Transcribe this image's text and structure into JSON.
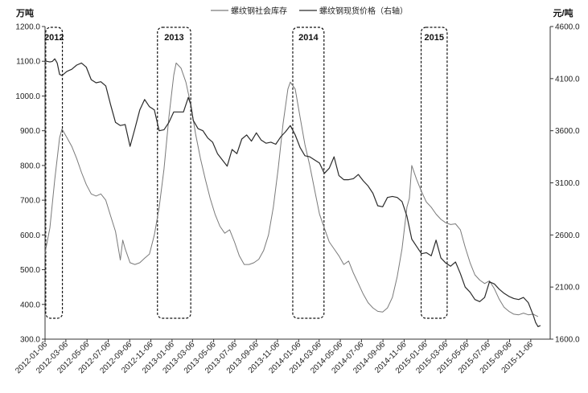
{
  "chart_data": {
    "type": "line",
    "legend_position": "top-center",
    "grid": false,
    "left_axis": {
      "unit": "万吨",
      "ylim": [
        300,
        1200
      ],
      "ticks": [
        "300.0",
        "400.0",
        "500.0",
        "600.0",
        "700.0",
        "800.0",
        "900.0",
        "1000.0",
        "1100.0",
        "1200.0"
      ]
    },
    "right_axis": {
      "unit": "元/吨",
      "ylim": [
        1600,
        4600
      ],
      "ticks": [
        "1600.0",
        "2100.0",
        "2600.0",
        "3100.0",
        "3600.0",
        "4100.0",
        "4600.0"
      ]
    },
    "x_range": [
      "2012-01-06",
      "2016-01-01"
    ],
    "x_ticks": [
      "2012-01-06",
      "2012-03-06",
      "2012-05-06",
      "2012-07-06",
      "2012-09-06",
      "2012-11-06",
      "2013-01-06",
      "2013-03-06",
      "2013-05-06",
      "2013-07-06",
      "2013-09-06",
      "2013-11-06",
      "2014-01-06",
      "2014-03-06",
      "2014-05-06",
      "2014-07-06",
      "2014-09-06",
      "2014-11-06",
      "2015-01-06",
      "2015-03-06",
      "2015-05-06",
      "2015-07-06",
      "2015-09-06",
      "2015-11-06"
    ],
    "highlight_periods": [
      {
        "label": "2012",
        "start": "2012-01-08",
        "end": "2012-02-25"
      },
      {
        "label": "2013",
        "start": "2012-11-25",
        "end": "2013-03-01"
      },
      {
        "label": "2014",
        "start": "2013-12-20",
        "end": "2014-03-20"
      },
      {
        "label": "2015",
        "start": "2014-12-25",
        "end": "2015-03-10"
      }
    ],
    "series": [
      {
        "name": "螺纹钢社会库存",
        "axis": "left",
        "color": "#7a7a7a",
        "points": [
          [
            "2012-01-06",
            548
          ],
          [
            "2012-01-20",
            620
          ],
          [
            "2012-02-03",
            760
          ],
          [
            "2012-02-17",
            880
          ],
          [
            "2012-02-24",
            905
          ],
          [
            "2012-03-09",
            880
          ],
          [
            "2012-03-23",
            855
          ],
          [
            "2012-04-06",
            820
          ],
          [
            "2012-04-20",
            780
          ],
          [
            "2012-05-04",
            745
          ],
          [
            "2012-05-18",
            718
          ],
          [
            "2012-06-01",
            712
          ],
          [
            "2012-06-15",
            718
          ],
          [
            "2012-06-29",
            700
          ],
          [
            "2012-07-13",
            655
          ],
          [
            "2012-07-27",
            610
          ],
          [
            "2012-08-10",
            528
          ],
          [
            "2012-08-17",
            585
          ],
          [
            "2012-08-24",
            560
          ],
          [
            "2012-09-07",
            520
          ],
          [
            "2012-09-21",
            515
          ],
          [
            "2012-10-05",
            520
          ],
          [
            "2012-10-19",
            533
          ],
          [
            "2012-11-02",
            545
          ],
          [
            "2012-11-16",
            600
          ],
          [
            "2012-11-30",
            680
          ],
          [
            "2012-12-14",
            790
          ],
          [
            "2012-12-28",
            940
          ],
          [
            "2013-01-11",
            1060
          ],
          [
            "2013-01-18",
            1095
          ],
          [
            "2013-02-01",
            1080
          ],
          [
            "2013-02-15",
            1040
          ],
          [
            "2013-03-01",
            975
          ],
          [
            "2013-03-15",
            890
          ],
          [
            "2013-03-29",
            820
          ],
          [
            "2013-04-12",
            760
          ],
          [
            "2013-04-26",
            705
          ],
          [
            "2013-05-10",
            660
          ],
          [
            "2013-05-24",
            625
          ],
          [
            "2013-06-07",
            605
          ],
          [
            "2013-06-21",
            615
          ],
          [
            "2013-07-05",
            580
          ],
          [
            "2013-07-19",
            540
          ],
          [
            "2013-08-02",
            515
          ],
          [
            "2013-08-16",
            515
          ],
          [
            "2013-08-30",
            520
          ],
          [
            "2013-09-13",
            530
          ],
          [
            "2013-09-27",
            555
          ],
          [
            "2013-10-11",
            600
          ],
          [
            "2013-10-25",
            680
          ],
          [
            "2013-11-08",
            790
          ],
          [
            "2013-11-22",
            920
          ],
          [
            "2013-12-06",
            1020
          ],
          [
            "2013-12-13",
            1040
          ],
          [
            "2013-12-27",
            1020
          ],
          [
            "2014-01-10",
            940
          ],
          [
            "2014-01-24",
            860
          ],
          [
            "2014-02-07",
            800
          ],
          [
            "2014-02-21",
            730
          ],
          [
            "2014-03-07",
            660
          ],
          [
            "2014-03-21",
            620
          ],
          [
            "2014-04-04",
            580
          ],
          [
            "2014-04-18",
            560
          ],
          [
            "2014-05-02",
            540
          ],
          [
            "2014-05-16",
            515
          ],
          [
            "2014-05-30",
            525
          ],
          [
            "2014-06-13",
            490
          ],
          [
            "2014-06-27",
            460
          ],
          [
            "2014-07-11",
            430
          ],
          [
            "2014-07-25",
            405
          ],
          [
            "2014-08-08",
            390
          ],
          [
            "2014-08-22",
            380
          ],
          [
            "2014-09-05",
            378
          ],
          [
            "2014-09-19",
            390
          ],
          [
            "2014-10-03",
            420
          ],
          [
            "2014-10-17",
            480
          ],
          [
            "2014-10-31",
            560
          ],
          [
            "2014-11-14",
            680
          ],
          [
            "2014-11-21",
            705
          ],
          [
            "2014-11-28",
            800
          ],
          [
            "2014-12-12",
            760
          ],
          [
            "2014-12-26",
            725
          ],
          [
            "2015-01-09",
            695
          ],
          [
            "2015-01-23",
            680
          ],
          [
            "2015-02-06",
            660
          ],
          [
            "2015-02-20",
            645
          ],
          [
            "2015-03-06",
            635
          ],
          [
            "2015-03-20",
            630
          ],
          [
            "2015-04-03",
            632
          ],
          [
            "2015-04-17",
            615
          ],
          [
            "2015-05-01",
            565
          ],
          [
            "2015-05-15",
            520
          ],
          [
            "2015-05-29",
            485
          ],
          [
            "2015-06-12",
            470
          ],
          [
            "2015-06-26",
            460
          ],
          [
            "2015-07-10",
            468
          ],
          [
            "2015-07-24",
            445
          ],
          [
            "2015-08-07",
            415
          ],
          [
            "2015-08-21",
            392
          ],
          [
            "2015-09-04",
            380
          ],
          [
            "2015-09-18",
            372
          ],
          [
            "2015-10-02",
            370
          ],
          [
            "2015-10-16",
            375
          ],
          [
            "2015-10-30",
            370
          ],
          [
            "2015-11-13",
            372
          ],
          [
            "2015-11-27",
            365
          ]
        ]
      },
      {
        "name": "螺纹钢现货价格（右轴）",
        "axis": "right",
        "color": "#2b2b2b",
        "points": [
          [
            "2012-01-06",
            4270
          ],
          [
            "2012-01-20",
            4260
          ],
          [
            "2012-01-27",
            4265
          ],
          [
            "2012-02-03",
            4290
          ],
          [
            "2012-02-10",
            4250
          ],
          [
            "2012-02-17",
            4140
          ],
          [
            "2012-02-24",
            4130
          ],
          [
            "2012-03-09",
            4170
          ],
          [
            "2012-03-23",
            4190
          ],
          [
            "2012-04-06",
            4230
          ],
          [
            "2012-04-20",
            4250
          ],
          [
            "2012-05-04",
            4210
          ],
          [
            "2012-05-18",
            4090
          ],
          [
            "2012-06-01",
            4060
          ],
          [
            "2012-06-15",
            4070
          ],
          [
            "2012-06-29",
            4030
          ],
          [
            "2012-07-13",
            3850
          ],
          [
            "2012-07-27",
            3680
          ],
          [
            "2012-08-10",
            3650
          ],
          [
            "2012-08-24",
            3660
          ],
          [
            "2012-09-07",
            3450
          ],
          [
            "2012-09-21",
            3620
          ],
          [
            "2012-10-05",
            3800
          ],
          [
            "2012-10-19",
            3900
          ],
          [
            "2012-11-02",
            3830
          ],
          [
            "2012-11-16",
            3800
          ],
          [
            "2012-11-30",
            3600
          ],
          [
            "2012-12-14",
            3610
          ],
          [
            "2012-12-28",
            3680
          ],
          [
            "2013-01-11",
            3780
          ],
          [
            "2013-01-25",
            3780
          ],
          [
            "2013-02-08",
            3780
          ],
          [
            "2013-02-22",
            3920
          ],
          [
            "2013-03-01",
            3850
          ],
          [
            "2013-03-08",
            3700
          ],
          [
            "2013-03-22",
            3620
          ],
          [
            "2013-04-05",
            3600
          ],
          [
            "2013-04-19",
            3530
          ],
          [
            "2013-05-03",
            3490
          ],
          [
            "2013-05-17",
            3380
          ],
          [
            "2013-05-31",
            3320
          ],
          [
            "2013-06-14",
            3260
          ],
          [
            "2013-06-28",
            3420
          ],
          [
            "2013-07-12",
            3380
          ],
          [
            "2013-07-26",
            3520
          ],
          [
            "2013-08-09",
            3560
          ],
          [
            "2013-08-23",
            3500
          ],
          [
            "2013-09-06",
            3580
          ],
          [
            "2013-09-20",
            3510
          ],
          [
            "2013-10-04",
            3480
          ],
          [
            "2013-10-18",
            3490
          ],
          [
            "2013-11-01",
            3470
          ],
          [
            "2013-11-15",
            3540
          ],
          [
            "2013-11-29",
            3590
          ],
          [
            "2013-12-13",
            3650
          ],
          [
            "2013-12-27",
            3560
          ],
          [
            "2014-01-10",
            3440
          ],
          [
            "2014-01-24",
            3360
          ],
          [
            "2014-02-07",
            3350
          ],
          [
            "2014-02-21",
            3320
          ],
          [
            "2014-03-07",
            3290
          ],
          [
            "2014-03-21",
            3190
          ],
          [
            "2014-04-04",
            3240
          ],
          [
            "2014-04-18",
            3350
          ],
          [
            "2014-05-02",
            3170
          ],
          [
            "2014-05-16",
            3130
          ],
          [
            "2014-05-30",
            3130
          ],
          [
            "2014-06-13",
            3140
          ],
          [
            "2014-06-27",
            3180
          ],
          [
            "2014-07-11",
            3120
          ],
          [
            "2014-07-25",
            3070
          ],
          [
            "2014-08-08",
            3000
          ],
          [
            "2014-08-22",
            2880
          ],
          [
            "2014-09-05",
            2870
          ],
          [
            "2014-09-19",
            2960
          ],
          [
            "2014-10-03",
            2970
          ],
          [
            "2014-10-17",
            2960
          ],
          [
            "2014-10-31",
            2920
          ],
          [
            "2014-11-14",
            2780
          ],
          [
            "2014-11-28",
            2560
          ],
          [
            "2014-12-12",
            2490
          ],
          [
            "2014-12-26",
            2420
          ],
          [
            "2015-01-09",
            2430
          ],
          [
            "2015-01-23",
            2400
          ],
          [
            "2015-02-06",
            2550
          ],
          [
            "2015-02-20",
            2380
          ],
          [
            "2015-03-06",
            2330
          ],
          [
            "2015-03-20",
            2300
          ],
          [
            "2015-04-03",
            2340
          ],
          [
            "2015-04-17",
            2230
          ],
          [
            "2015-05-01",
            2100
          ],
          [
            "2015-05-15",
            2050
          ],
          [
            "2015-05-29",
            1980
          ],
          [
            "2015-06-12",
            1960
          ],
          [
            "2015-06-26",
            2000
          ],
          [
            "2015-07-10",
            2150
          ],
          [
            "2015-07-24",
            2130
          ],
          [
            "2015-08-07",
            2080
          ],
          [
            "2015-08-21",
            2040
          ],
          [
            "2015-09-04",
            2010
          ],
          [
            "2015-09-18",
            1990
          ],
          [
            "2015-10-02",
            1980
          ],
          [
            "2015-10-16",
            2000
          ],
          [
            "2015-10-30",
            1950
          ],
          [
            "2015-11-13",
            1830
          ],
          [
            "2015-11-20",
            1760
          ],
          [
            "2015-11-27",
            1720
          ],
          [
            "2015-12-04",
            1730
          ]
        ]
      }
    ]
  }
}
